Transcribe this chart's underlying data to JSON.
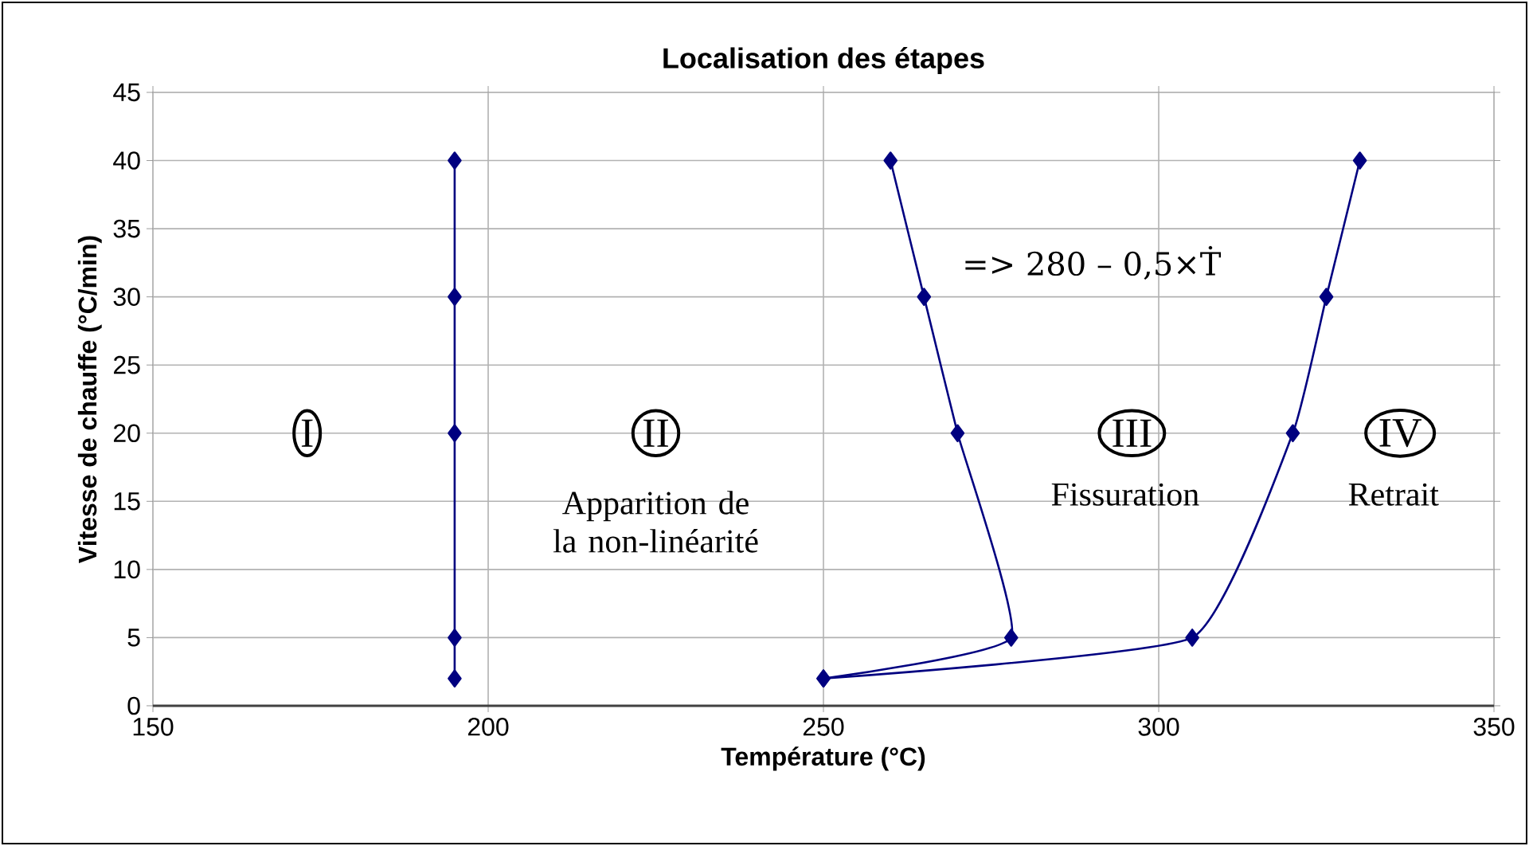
{
  "chart_data": {
    "type": "line",
    "title": "Localisation des étapes",
    "xlabel": "Température (°C)",
    "ylabel": "Vitesse de chauffe (°C/min)",
    "xlim": [
      150,
      350
    ],
    "xticks": [
      150,
      200,
      250,
      300,
      350
    ],
    "ylim": [
      0,
      45
    ],
    "yticks": [
      0,
      5,
      10,
      15,
      20,
      25,
      30,
      35,
      40,
      45
    ],
    "grid": true,
    "marker": "diamond",
    "line_style": "solid",
    "series": [
      {
        "color": "#000080",
        "x": [
          195,
          195,
          195,
          195,
          195
        ],
        "values": [
          2,
          5,
          20,
          30,
          40
        ]
      },
      {
        "color": "#000080",
        "x": [
          250,
          278,
          270,
          265,
          260
        ],
        "values": [
          2,
          5,
          20,
          30,
          40
        ]
      },
      {
        "color": "#000080",
        "x": [
          250,
          305,
          320,
          325,
          330
        ],
        "values": [
          2,
          5,
          20,
          30,
          40
        ]
      }
    ],
    "annotations": [
      "I",
      "II",
      "Apparition de la non-linéarité",
      "III",
      "Fissuration",
      "IV",
      "Retrait",
      "=> 280 – 0,5×Ṫ"
    ]
  }
}
